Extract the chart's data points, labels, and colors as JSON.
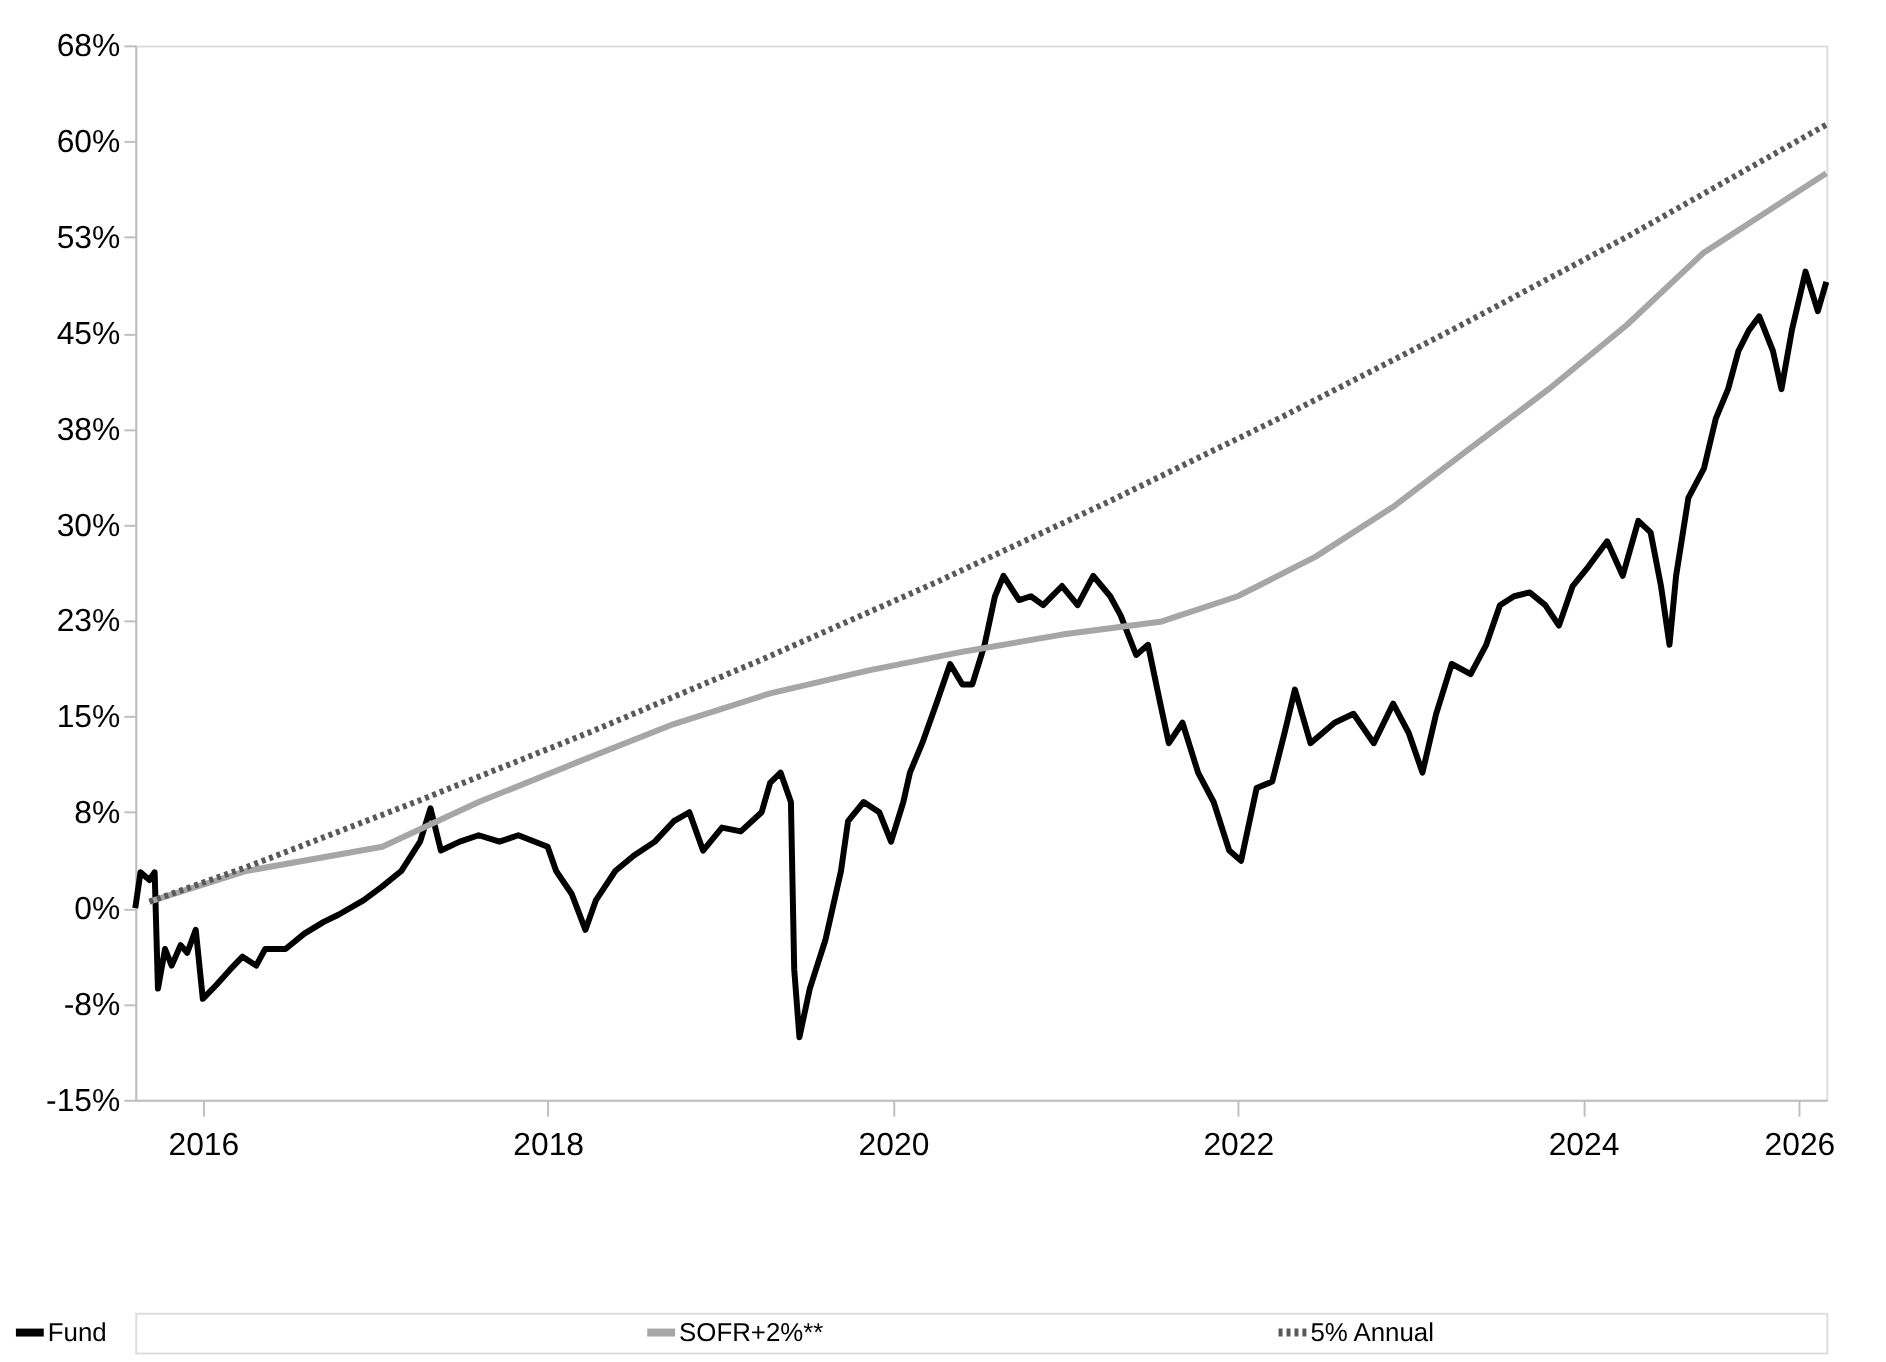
{
  "chart_data": {
    "type": "line",
    "xlim": [
      "2016-05-11",
      "2026-02-28"
    ],
    "ylim": [
      -15,
      67.5
    ],
    "xticks": [
      {
        "value": "2016-10",
        "label": "2016"
      },
      {
        "value": "2018-10",
        "label": "2018"
      },
      {
        "value": "2020-10",
        "label": "2020"
      },
      {
        "value": "2022-10",
        "label": "2022"
      },
      {
        "value": "2024-10",
        "label": "2024"
      },
      {
        "value": "2026-01",
        "label": "2026"
      }
    ],
    "yticks": [
      {
        "value": -15,
        "label": "-15%"
      },
      {
        "value": -7.5,
        "label": "-8%"
      },
      {
        "value": 0,
        "label": "0%"
      },
      {
        "value": 7.5,
        "label": "8%"
      },
      {
        "value": 15,
        "label": "15%"
      },
      {
        "value": 22.5,
        "label": "23%"
      },
      {
        "value": 30,
        "label": "30%"
      },
      {
        "value": 37.5,
        "label": "38%"
      },
      {
        "value": 45,
        "label": "45%"
      },
      {
        "value": 52.5,
        "label": "53%"
      },
      {
        "value": 60,
        "label": "60%"
      },
      {
        "value": 67.5,
        "label": "68%"
      }
    ],
    "grid": false,
    "legend": "bottom",
    "marker": "none",
    "series": [
      {
        "name": "Fund",
        "color": "#000000",
        "line_style": "solid",
        "x": [
          "2016-05-11",
          "2016-05-22",
          "2016-06-10",
          "2016-06-21",
          "2016-06-28",
          "2016-07-13",
          "2016-07-27",
          "2016-08-15",
          "2016-08-29",
          "2016-09-16",
          "2016-10-01",
          "2016-10-30",
          "2016-11-28",
          "2016-12-24",
          "2017-01-22",
          "2017-02-10",
          "2017-03-25",
          "2017-05-04",
          "2017-06-13",
          "2017-07-16",
          "2017-09-06",
          "2017-10-16",
          "2017-11-25",
          "2018-01-04",
          "2018-01-26",
          "2018-02-17",
          "2018-03-29",
          "2018-05-08",
          "2018-06-21",
          "2018-07-31",
          "2018-10-01",
          "2018-10-19",
          "2018-11-21",
          "2018-12-20",
          "2019-01-11",
          "2019-02-21",
          "2019-04-01",
          "2019-05-16",
          "2019-06-25",
          "2019-07-28",
          "2019-08-26",
          "2019-10-05",
          "2019-11-14",
          "2019-12-28",
          "2020-01-15",
          "2020-02-06",
          "2020-02-28",
          "2020-03-06",
          "2020-03-17",
          "2020-04-08",
          "2020-05-11",
          "2020-06-13",
          "2020-06-28",
          "2020-07-31",
          "2020-09-02",
          "2020-09-27",
          "2020-10-23",
          "2020-11-06",
          "2020-12-02",
          "2021-01-01",
          "2021-01-30",
          "2021-02-25",
          "2021-03-18",
          "2021-04-13",
          "2021-05-05",
          "2021-05-23",
          "2021-06-25",
          "2021-07-20",
          "2021-08-15",
          "2021-09-24",
          "2021-10-27",
          "2021-11-29",
          "2022-01-04",
          "2022-01-26",
          "2022-02-28",
          "2022-03-25",
          "2022-04-20",
          "2022-05-08",
          "2022-06-06",
          "2022-07-09",
          "2022-08-11",
          "2022-09-13",
          "2022-10-08",
          "2022-11-10",
          "2022-12-13",
          "2023-01-08",
          "2023-01-30",
          "2023-03-04",
          "2023-04-24",
          "2023-06-03",
          "2023-07-16",
          "2023-08-26",
          "2023-09-28",
          "2023-10-27",
          "2023-11-25",
          "2023-12-28",
          "2024-02-06",
          "2024-03-10",
          "2024-04-08",
          "2024-05-08",
          "2024-06-10",
          "2024-07-13",
          "2024-08-11",
          "2024-09-09",
          "2024-10-12",
          "2024-11-21",
          "2024-12-24",
          "2025-01-26",
          "2025-02-21",
          "2025-03-15",
          "2025-04-02",
          "2025-04-16",
          "2025-05-12",
          "2025-06-14",
          "2025-07-09",
          "2025-08-04",
          "2025-08-26",
          "2025-09-17",
          "2025-10-09",
          "2025-11-07",
          "2025-11-25",
          "2025-12-17",
          "2026-01-15",
          "2026-02-10",
          "2026-02-28"
        ],
        "values": [
          0,
          2.8,
          2.2,
          2.8,
          -6.3,
          -3.2,
          -4.5,
          -2.9,
          -3.5,
          -1.7,
          -7.1,
          -6.0,
          -4.8,
          -3.8,
          -4.5,
          -3.2,
          -3.2,
          -2.0,
          -1.1,
          -0.5,
          0.6,
          1.7,
          2.9,
          5.2,
          7.8,
          4.5,
          5.2,
          5.7,
          5.2,
          5.7,
          4.8,
          2.9,
          1.1,
          -1.7,
          0.6,
          2.9,
          4.1,
          5.2,
          6.8,
          7.5,
          4.5,
          6.3,
          6.0,
          7.5,
          9.8,
          10.6,
          8.3,
          -4.8,
          -10.1,
          -6.3,
          -2.5,
          2.9,
          6.8,
          8.3,
          7.5,
          5.2,
          8.3,
          10.6,
          12.9,
          16.0,
          19.1,
          17.5,
          17.5,
          20.6,
          24.4,
          26.0,
          24.1,
          24.4,
          23.7,
          25.2,
          23.7,
          26.0,
          24.4,
          22.9,
          19.8,
          20.6,
          16.0,
          12.9,
          14.5,
          10.6,
          8.3,
          4.5,
          3.7,
          9.4,
          9.9,
          13.7,
          17.1,
          12.9,
          14.5,
          15.2,
          12.9,
          16.0,
          13.7,
          10.6,
          15.2,
          19.1,
          18.3,
          20.6,
          23.7,
          24.4,
          24.7,
          23.7,
          22.1,
          25.2,
          26.7,
          28.7,
          26.0,
          30.3,
          29.4,
          25.2,
          20.6,
          26.0,
          32.1,
          34.4,
          38.3,
          40.6,
          43.6,
          45.2,
          46.3,
          43.6,
          40.6,
          45.2,
          49.8,
          46.7,
          49.0
        ]
      },
      {
        "name": "SOFR+2%**",
        "color": "#a6a6a6",
        "line_style": "solid",
        "x": [
          "2016-06-10",
          "2017-01-01",
          "2017-10-16",
          "2018-05-08",
          "2018-12-02",
          "2019-06-25",
          "2020-01-15",
          "2020-08-11",
          "2021-03-04",
          "2021-09-24",
          "2022-04-20",
          "2022-10-01",
          "2023-03-15",
          "2023-08-26",
          "2024-02-06",
          "2024-07-20",
          "2025-01-01",
          "2025-06-14",
          "2026-02-28"
        ],
        "values": [
          0.5,
          2.9,
          4.8,
          8.3,
          11.4,
          14.4,
          16.8,
          18.6,
          20.1,
          21.4,
          22.4,
          24.4,
          27.5,
          31.4,
          36.0,
          40.6,
          45.6,
          51.3,
          57.5
        ]
      },
      {
        "name": "5% Annual",
        "color": "#595959",
        "line_style": "dotted",
        "x": [
          "2016-06-10",
          "2017-01-01",
          "2018-01-01",
          "2019-01-01",
          "2020-01-01",
          "2021-01-01",
          "2022-01-01",
          "2023-01-01",
          "2024-01-01",
          "2025-01-01",
          "2026-02-28"
        ],
        "values": [
          0.5,
          3.2,
          8.4,
          13.8,
          19.5,
          25.5,
          31.8,
          38.4,
          45.3,
          52.5,
          61.3
        ]
      }
    ]
  }
}
